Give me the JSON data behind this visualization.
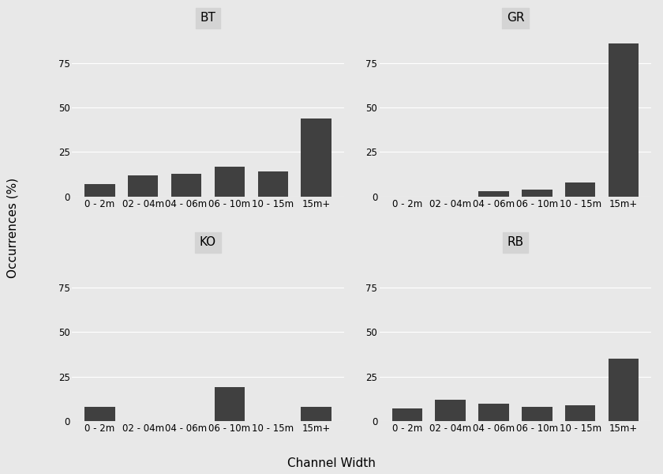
{
  "panels": [
    "BT",
    "GR",
    "KO",
    "RB"
  ],
  "categories": [
    "0 - 2m",
    "02 - 04m",
    "04 - 06m",
    "06 - 10m",
    "10 - 15m",
    "15m+"
  ],
  "values": {
    "BT": [
      7,
      12,
      13,
      17,
      14,
      44
    ],
    "GR": [
      0,
      0,
      3,
      4,
      8,
      86
    ],
    "KO": [
      8,
      0,
      0,
      19,
      0,
      8
    ],
    "RB": [
      7,
      12,
      10,
      8,
      9,
      35
    ]
  },
  "bar_color": "#404040",
  "panel_bg_color": "#e8e8e8",
  "panel_title_bg": "#d4d4d4",
  "fig_bg_color": "#e8e8e8",
  "grid_color": "#ffffff",
  "ylabel": "Occurrences (%)",
  "xlabel": "Channel Width",
  "yticks": [
    0,
    25,
    50,
    75
  ],
  "ylim": [
    0,
    97
  ],
  "title_fontsize": 11,
  "label_fontsize": 11,
  "tick_fontsize": 8.5
}
